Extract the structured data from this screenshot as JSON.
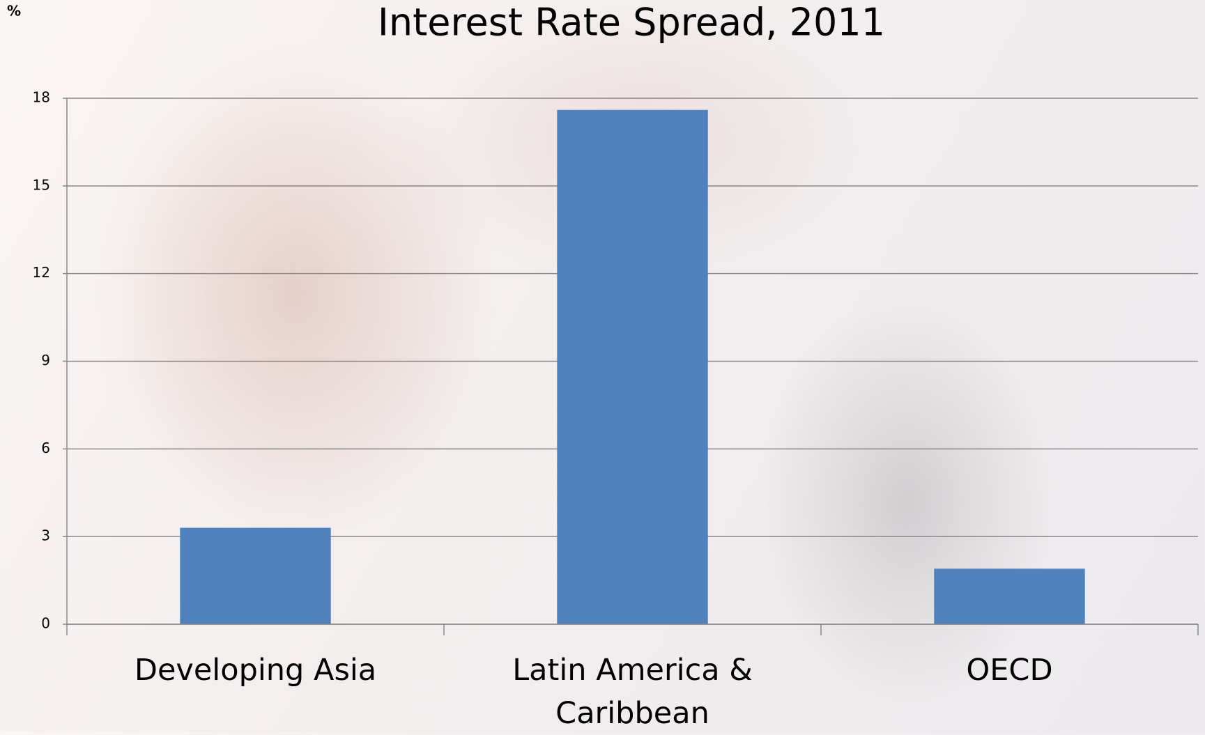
{
  "chart_data": {
    "type": "bar",
    "title": "Interest Rate Spread, 2011",
    "y_label": "%",
    "categories": [
      "Developing Asia",
      "Latin America & Caribbean",
      "OECD"
    ],
    "values": [
      3.3,
      17.6,
      1.9
    ],
    "color": "#4f81bd",
    "ylim": [
      0,
      18
    ],
    "yticks": [
      0,
      3,
      6,
      9,
      12,
      15,
      18
    ],
    "grid": true
  }
}
